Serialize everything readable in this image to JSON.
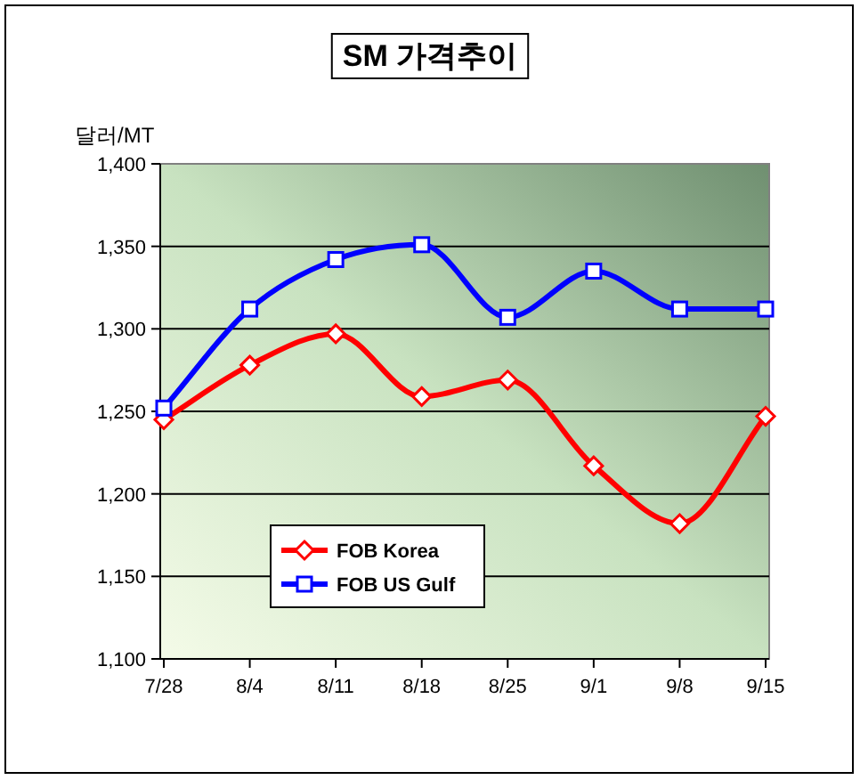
{
  "chart_data": {
    "type": "line",
    "title": "SM 가격추이",
    "ylabel": "달러/MT",
    "categories": [
      "7/28",
      "8/4",
      "8/11",
      "8/18",
      "8/25",
      "9/1",
      "9/8",
      "9/15"
    ],
    "series": [
      {
        "name": "FOB Korea",
        "color": "#ff0000",
        "marker": "diamond",
        "values": [
          1245,
          1278,
          1297,
          1259,
          1269,
          1217,
          1182,
          1247
        ]
      },
      {
        "name": "FOB US Gulf",
        "color": "#0000ff",
        "marker": "square",
        "values": [
          1252,
          1312,
          1342,
          1351,
          1307,
          1335,
          1312,
          1312
        ]
      }
    ],
    "ylim": [
      1100,
      1400
    ],
    "yticks": [
      {
        "value": 1100,
        "label": "1,100"
      },
      {
        "value": 1150,
        "label": "1,150"
      },
      {
        "value": 1200,
        "label": "1,200"
      },
      {
        "value": 1250,
        "label": "1,250"
      },
      {
        "value": 1300,
        "label": "1,300"
      },
      {
        "value": 1350,
        "label": "1,350"
      },
      {
        "value": 1400,
        "label": "1,400"
      }
    ],
    "grid": "y",
    "legend": "bottom left",
    "line_style": "solid"
  }
}
